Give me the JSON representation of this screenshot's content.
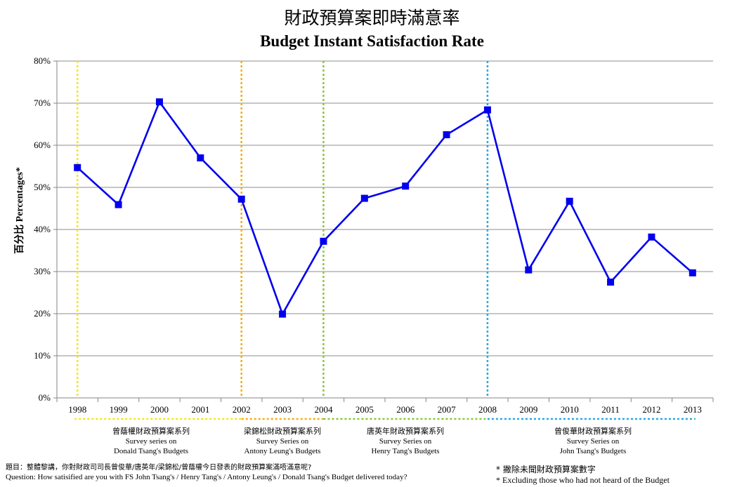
{
  "header": {
    "title_zh": "財政預算案即時滿意率",
    "title_en": "Budget Instant Satisfaction Rate"
  },
  "chart_data": {
    "type": "line",
    "title": "Budget Instant Satisfaction Rate",
    "ylabel": "百分比 Percentages*",
    "xlabel": "",
    "categories": [
      "1998",
      "1999",
      "2000",
      "2001",
      "2002",
      "2003",
      "2004",
      "2005",
      "2006",
      "2007",
      "2008",
      "2009",
      "2010",
      "2011",
      "2012",
      "2013"
    ],
    "y_ticks": [
      "0%",
      "10%",
      "20%",
      "30%",
      "40%",
      "50%",
      "60%",
      "70%",
      "80%"
    ],
    "ylim": [
      0,
      80
    ],
    "grid": true,
    "series": [
      {
        "values": [
          54.7,
          45.9,
          70.3,
          57.0,
          47.2,
          19.9,
          37.2,
          47.4,
          50.3,
          62.5,
          68.4,
          30.4,
          46.7,
          27.5,
          38.2,
          29.7
        ],
        "color": "#0000ee"
      }
    ],
    "marker_lines": [
      {
        "year": "1998",
        "color": "#f6e71a"
      },
      {
        "year": "2002",
        "color": "#f2b015"
      },
      {
        "year": "2004",
        "color": "#8ac83c"
      },
      {
        "year": "2008",
        "color": "#2aa8e0"
      }
    ],
    "series_bands": [
      {
        "from": "1998",
        "to": "2002",
        "color": "#f6e71a",
        "zh": "曾蔭權財政預算案系列",
        "en1": "Survey  series on",
        "en2": "Donald Tsang's Budgets"
      },
      {
        "from": "2002",
        "to": "2004",
        "color": "#f2b015",
        "zh": "梁錦松財政預算案系列",
        "en1": "Survey Series on",
        "en2": "Antony Leung's Budgets"
      },
      {
        "from": "2004",
        "to": "2008",
        "color": "#8ac83c",
        "zh": "唐英年財政預算案系列",
        "en1": "Survey Series on",
        "en2": "Henry Tang's Budgets"
      },
      {
        "from": "2008",
        "to": "2013",
        "color": "#2aa8e0",
        "zh": "曾俊華財政預算案系列",
        "en1": "Survey Series on",
        "en2": "John Tsang's Budgets"
      }
    ]
  },
  "footer": {
    "question_zh": "題目：整體黎講，你對財政司司長曾俊華/唐英年/梁錦松/曾蔭權今日發表的財政預算案滿唔滿意呢?",
    "question_en": "Question: How satisified are you with FS John Tsang's / Henry Tang's / Antony Leung's / Donald Tsang's Budget delivered today?",
    "note_zh": "* 撇除未聞財政預算案數字",
    "note_en": "* Excluding  those who had not heard of the Budget"
  }
}
